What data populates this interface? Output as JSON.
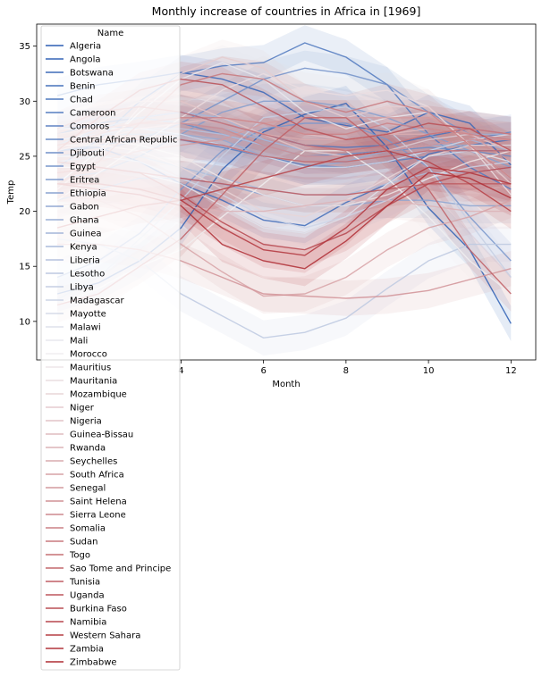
{
  "chart_data": {
    "type": "line",
    "title": "Monthly increase of countries in Africa in [1969]",
    "xlabel": "Month",
    "ylabel": "Temp",
    "xlim": [
      0.5,
      12.6
    ],
    "ylim": [
      6.5,
      37
    ],
    "xticks": [
      4,
      6,
      8,
      10,
      12
    ],
    "yticks": [
      10,
      15,
      20,
      25,
      30,
      35
    ],
    "legend": {
      "title": "Name",
      "placement": "upper-left"
    },
    "palette": "vlag",
    "x": [
      1,
      2,
      3,
      4,
      5,
      6,
      7,
      8,
      9,
      10,
      11,
      12
    ],
    "series": [
      {
        "name": "Algeria",
        "values": [
          12.5,
          13.5,
          15.5,
          18.5,
          23.8,
          27.2,
          28.8,
          29.8,
          25.8,
          20.3,
          16.5,
          9.8
        ]
      },
      {
        "name": "Angola",
        "values": [
          30.5,
          31.5,
          32.0,
          32.6,
          32.0,
          30.8,
          28.5,
          27.8,
          27.2,
          29.0,
          28.0,
          24.2
        ]
      },
      {
        "name": "Botswana",
        "values": [
          25.5,
          25.8,
          24.5,
          22.5,
          21.0,
          19.2,
          18.7,
          20.8,
          22.5,
          25.2,
          26.0,
          26.5
        ]
      },
      {
        "name": "Benin",
        "values": [
          27.0,
          28.0,
          28.5,
          29.0,
          28.0,
          27.0,
          26.0,
          25.8,
          26.0,
          26.8,
          27.5,
          27.0
        ]
      },
      {
        "name": "Chad",
        "values": [
          24.0,
          26.5,
          30.0,
          32.5,
          33.2,
          33.5,
          35.3,
          34.0,
          31.5,
          27.0,
          24.0,
          22.0
        ]
      },
      {
        "name": "Cameroon",
        "values": [
          25.5,
          26.0,
          26.5,
          26.5,
          25.8,
          25.0,
          24.2,
          24.0,
          24.5,
          25.0,
          25.5,
          25.5
        ]
      },
      {
        "name": "Comoros",
        "values": [
          27.5,
          27.8,
          27.5,
          27.0,
          26.0,
          25.0,
          24.0,
          24.0,
          24.5,
          25.5,
          26.5,
          27.2
        ]
      },
      {
        "name": "Central African Republic",
        "values": [
          26.0,
          27.5,
          28.5,
          28.0,
          27.0,
          26.0,
          25.0,
          25.2,
          25.5,
          25.8,
          25.5,
          25.0
        ]
      },
      {
        "name": "Djibouti",
        "values": [
          25.0,
          25.5,
          26.5,
          28.0,
          30.0,
          32.0,
          33.0,
          32.5,
          31.5,
          29.0,
          27.0,
          25.5
        ]
      },
      {
        "name": "Egypt",
        "values": [
          14.0,
          15.5,
          18.0,
          22.0,
          25.5,
          27.5,
          28.0,
          28.0,
          26.5,
          24.0,
          19.5,
          15.5
        ]
      },
      {
        "name": "Eritrea",
        "values": [
          23.0,
          23.5,
          25.0,
          27.0,
          29.0,
          30.0,
          30.0,
          29.5,
          28.5,
          27.0,
          25.5,
          24.0
        ]
      },
      {
        "name": "Ethiopia",
        "values": [
          21.0,
          22.0,
          23.0,
          23.0,
          22.5,
          21.5,
          20.5,
          20.5,
          21.0,
          21.0,
          20.5,
          20.5
        ]
      },
      {
        "name": "Gabon",
        "values": [
          26.5,
          27.0,
          27.0,
          27.0,
          26.5,
          25.0,
          24.0,
          24.5,
          25.5,
          26.0,
          26.0,
          26.0
        ]
      },
      {
        "name": "Ghana",
        "values": [
          27.5,
          28.5,
          28.5,
          28.0,
          27.5,
          26.5,
          25.5,
          25.0,
          25.5,
          26.5,
          27.0,
          27.0
        ]
      },
      {
        "name": "Guinea",
        "values": [
          26.0,
          27.5,
          28.5,
          29.0,
          28.5,
          26.5,
          25.5,
          25.0,
          25.5,
          26.0,
          26.5,
          25.5
        ]
      },
      {
        "name": "Kenya",
        "values": [
          24.5,
          25.0,
          25.0,
          24.0,
          23.0,
          22.0,
          21.5,
          21.5,
          22.5,
          23.5,
          23.5,
          24.0
        ]
      },
      {
        "name": "Liberia",
        "values": [
          26.5,
          27.0,
          27.5,
          27.5,
          27.0,
          26.0,
          25.0,
          25.0,
          25.5,
          26.0,
          26.5,
          26.5
        ]
      },
      {
        "name": "Lesotho",
        "values": [
          17.5,
          17.0,
          15.5,
          12.5,
          10.5,
          8.5,
          9.0,
          10.3,
          13.0,
          15.5,
          17.0,
          17.0
        ]
      },
      {
        "name": "Libya",
        "values": [
          12.0,
          14.0,
          17.5,
          21.0,
          25.0,
          28.5,
          29.0,
          29.5,
          27.5,
          24.0,
          19.0,
          14.0
        ]
      },
      {
        "name": "Madagascar",
        "values": [
          25.0,
          25.0,
          24.5,
          23.0,
          21.5,
          19.5,
          18.5,
          19.5,
          21.0,
          23.0,
          24.0,
          24.5
        ]
      },
      {
        "name": "Mayotte",
        "values": [
          27.5,
          27.5,
          27.5,
          27.0,
          26.0,
          25.0,
          24.0,
          24.0,
          24.5,
          25.5,
          26.5,
          27.0
        ]
      },
      {
        "name": "Malawi",
        "values": [
          24.0,
          24.0,
          23.5,
          22.5,
          20.5,
          18.5,
          18.0,
          19.5,
          22.5,
          25.0,
          25.5,
          24.5
        ]
      },
      {
        "name": "Mali",
        "values": [
          22.5,
          25.5,
          29.0,
          32.0,
          33.5,
          32.0,
          29.0,
          27.5,
          28.5,
          29.0,
          26.0,
          23.0
        ]
      },
      {
        "name": "Morocco",
        "values": [
          11.5,
          13.0,
          15.0,
          16.5,
          19.5,
          22.5,
          25.5,
          25.5,
          23.0,
          19.5,
          15.5,
          12.5
        ]
      },
      {
        "name": "Mauritius",
        "values": [
          26.0,
          26.5,
          26.0,
          25.0,
          23.0,
          21.5,
          20.5,
          20.5,
          21.5,
          23.0,
          24.5,
          25.5
        ]
      },
      {
        "name": "Mauritania",
        "values": [
          21.0,
          23.5,
          26.0,
          28.5,
          31.0,
          32.5,
          31.0,
          30.5,
          31.0,
          29.5,
          26.0,
          21.5
        ]
      },
      {
        "name": "Mozambique",
        "values": [
          26.0,
          26.0,
          25.5,
          24.0,
          22.0,
          20.0,
          19.5,
          21.0,
          23.0,
          25.0,
          26.0,
          26.0
        ]
      },
      {
        "name": "Niger",
        "values": [
          22.0,
          25.0,
          29.5,
          32.5,
          34.0,
          33.0,
          30.0,
          28.5,
          29.5,
          29.5,
          26.0,
          22.5
        ]
      },
      {
        "name": "Nigeria",
        "values": [
          25.5,
          28.0,
          30.0,
          30.0,
          28.5,
          27.0,
          25.5,
          25.0,
          25.5,
          26.5,
          27.0,
          25.5
        ]
      },
      {
        "name": "Guinea-Bissau",
        "values": [
          25.5,
          26.5,
          27.5,
          28.0,
          28.5,
          28.0,
          27.0,
          26.5,
          27.0,
          27.5,
          27.0,
          25.5
        ]
      },
      {
        "name": "Rwanda",
        "values": [
          20.5,
          21.0,
          20.5,
          20.5,
          20.0,
          20.0,
          20.5,
          21.0,
          21.0,
          20.5,
          20.0,
          20.0
        ]
      },
      {
        "name": "Seychelles",
        "values": [
          27.0,
          27.5,
          28.0,
          28.5,
          28.0,
          27.0,
          26.5,
          26.5,
          27.0,
          27.0,
          27.5,
          27.0
        ]
      },
      {
        "name": "South Africa",
        "values": [
          21.5,
          21.0,
          19.5,
          17.0,
          14.5,
          12.3,
          12.5,
          14.0,
          16.5,
          18.5,
          19.5,
          21.0
        ]
      },
      {
        "name": "Senegal",
        "values": [
          23.5,
          24.5,
          25.5,
          26.0,
          26.5,
          28.0,
          28.5,
          28.5,
          28.5,
          28.5,
          27.0,
          24.5
        ]
      },
      {
        "name": "Saint Helena",
        "values": [
          17.0,
          17.0,
          16.5,
          15.5,
          14.0,
          12.5,
          12.3,
          12.1,
          12.3,
          12.8,
          13.8,
          14.8
        ]
      },
      {
        "name": "Sierra Leone",
        "values": [
          26.5,
          27.5,
          28.0,
          28.0,
          27.5,
          26.0,
          25.0,
          25.0,
          25.5,
          26.0,
          26.5,
          26.5
        ]
      },
      {
        "name": "Somalia",
        "values": [
          26.0,
          27.0,
          28.0,
          28.5,
          28.5,
          28.0,
          27.0,
          27.0,
          28.0,
          27.5,
          27.0,
          26.5
        ]
      },
      {
        "name": "Sudan",
        "values": [
          22.5,
          24.5,
          28.0,
          31.5,
          32.5,
          32.0,
          30.0,
          29.0,
          30.0,
          29.0,
          26.0,
          23.0
        ]
      },
      {
        "name": "Togo",
        "values": [
          27.5,
          29.0,
          29.5,
          29.0,
          28.0,
          27.0,
          26.0,
          25.5,
          26.0,
          27.0,
          27.5,
          27.0
        ]
      },
      {
        "name": "Sao Tome and Principe",
        "values": [
          26.0,
          26.5,
          26.5,
          26.5,
          26.0,
          25.0,
          24.5,
          24.5,
          25.0,
          25.5,
          25.5,
          25.5
        ]
      },
      {
        "name": "Tunisia",
        "values": [
          11.5,
          12.5,
          15.0,
          17.5,
          21.5,
          25.5,
          28.5,
          28.5,
          25.5,
          22.0,
          16.5,
          12.5
        ]
      },
      {
        "name": "Uganda",
        "values": [
          23.5,
          24.0,
          23.5,
          23.0,
          22.5,
          22.0,
          21.5,
          21.5,
          22.0,
          22.5,
          22.5,
          22.5
        ]
      },
      {
        "name": "Burkina Faso",
        "values": [
          25.5,
          28.5,
          31.0,
          32.0,
          31.5,
          29.5,
          27.5,
          26.5,
          27.0,
          28.0,
          27.5,
          25.5
        ]
      },
      {
        "name": "Namibia",
        "values": [
          24.5,
          24.0,
          23.5,
          21.5,
          19.0,
          17.0,
          16.5,
          18.0,
          20.5,
          22.5,
          23.5,
          24.0
        ]
      },
      {
        "name": "Western Sahara",
        "values": [
          18.5,
          19.5,
          20.5,
          21.0,
          22.0,
          23.0,
          24.0,
          25.0,
          25.5,
          24.5,
          22.5,
          20.0
        ]
      },
      {
        "name": "Zambia",
        "values": [
          22.5,
          22.5,
          22.0,
          21.0,
          18.5,
          16.5,
          16.0,
          18.5,
          22.0,
          24.0,
          23.5,
          22.5
        ]
      },
      {
        "name": "Zimbabwe",
        "values": [
          22.5,
          22.0,
          21.5,
          20.5,
          17.0,
          15.5,
          14.8,
          17.3,
          20.5,
          23.5,
          23.0,
          21.2
        ]
      }
    ]
  }
}
